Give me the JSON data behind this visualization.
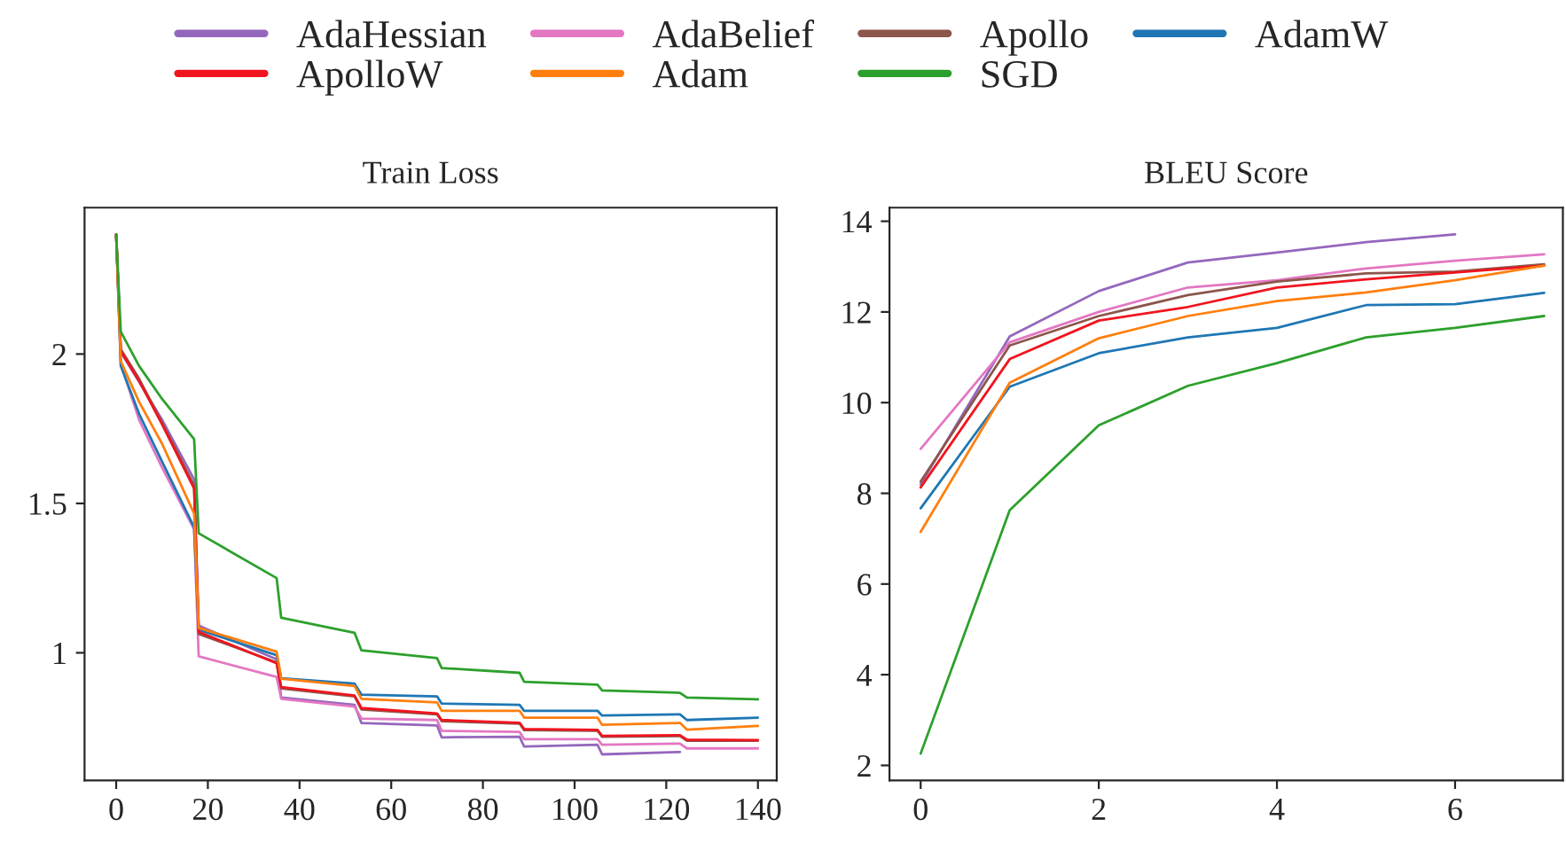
{
  "chart_data": [
    {
      "type": "line",
      "title": "Train Loss",
      "xlim": [
        -6.9,
        144.1
      ],
      "ylim": [
        0.573,
        2.49
      ],
      "xticks": [
        0,
        20,
        40,
        60,
        80,
        100,
        120,
        140
      ],
      "yticks": [
        1,
        1.5,
        2
      ],
      "grid": false,
      "legend": "top",
      "series": [
        {
          "name": "AdaHessian",
          "color": "#9467bd",
          "x": [
            0,
            1,
            5,
            10,
            17,
            18,
            35,
            36,
            52,
            53.5,
            70,
            71,
            88,
            89,
            105,
            106,
            123
          ],
          "values": [
            2.4,
            2.006,
            1.907,
            1.78,
            1.58,
            1.091,
            0.978,
            0.85,
            0.826,
            0.765,
            0.757,
            0.717,
            0.719,
            0.686,
            0.692,
            0.66,
            0.668
          ]
        },
        {
          "name": "AdaBelief",
          "color": "#e377c2",
          "x": [
            0,
            1,
            5,
            10,
            17,
            18,
            35,
            36,
            52,
            53.5,
            70,
            71,
            88,
            89,
            105,
            106,
            123,
            124.5,
            140
          ],
          "values": [
            2.4,
            1.966,
            1.78,
            1.62,
            1.413,
            0.988,
            0.919,
            0.846,
            0.82,
            0.78,
            0.775,
            0.739,
            0.735,
            0.711,
            0.711,
            0.692,
            0.696,
            0.68,
            0.68
          ]
        },
        {
          "name": "Apollo",
          "color": "#8c564b",
          "x": [
            0,
            1,
            5,
            10,
            17,
            18,
            35,
            36,
            52,
            53.5,
            70,
            71,
            88,
            89,
            105,
            106,
            123,
            124.5,
            140
          ],
          "values": [
            2.4,
            2.016,
            1.917,
            1.77,
            1.56,
            1.063,
            0.968,
            0.881,
            0.854,
            0.81,
            0.794,
            0.771,
            0.763,
            0.741,
            0.739,
            0.719,
            0.721,
            0.706,
            0.706
          ]
        },
        {
          "name": "AdamW",
          "color": "#1f77b4",
          "x": [
            0,
            1,
            5,
            10,
            17,
            18,
            35,
            36,
            52,
            53.5,
            70,
            71,
            88,
            89,
            105,
            106,
            123,
            124.5,
            140
          ],
          "values": [
            2.4,
            1.96,
            1.8,
            1.64,
            1.42,
            1.077,
            0.992,
            0.915,
            0.897,
            0.86,
            0.854,
            0.83,
            0.826,
            0.806,
            0.806,
            0.79,
            0.794,
            0.775,
            0.783
          ]
        },
        {
          "name": "ApolloW",
          "color": "#f0141e",
          "x": [
            0,
            1,
            5,
            10,
            17,
            18,
            35,
            36,
            52,
            53.5,
            70,
            71,
            88,
            89,
            105,
            106,
            123,
            124.5,
            140
          ],
          "values": [
            2.4,
            2.01,
            1.91,
            1.765,
            1.55,
            1.07,
            0.965,
            0.885,
            0.857,
            0.815,
            0.797,
            0.775,
            0.766,
            0.745,
            0.742,
            0.722,
            0.724,
            0.709,
            0.708
          ]
        },
        {
          "name": "Adam",
          "color": "#ff7f0e",
          "x": [
            0,
            1,
            5,
            10,
            17,
            18,
            35,
            36,
            52,
            53.5,
            70,
            71,
            88,
            89,
            105,
            106,
            123,
            124.5,
            140
          ],
          "values": [
            2.4,
            1.976,
            1.84,
            1.7,
            1.466,
            1.083,
            1.004,
            0.913,
            0.889,
            0.846,
            0.834,
            0.806,
            0.806,
            0.783,
            0.783,
            0.759,
            0.765,
            0.743,
            0.755
          ]
        },
        {
          "name": "SGD",
          "color": "#2ca02c",
          "x": [
            0,
            1,
            5,
            10,
            17,
            18,
            35,
            36,
            52,
            53.5,
            70,
            71,
            88,
            89,
            105,
            106,
            123,
            124.5,
            140
          ],
          "values": [
            2.4,
            2.075,
            1.96,
            1.85,
            1.715,
            1.4,
            1.25,
            1.117,
            1.067,
            1.008,
            0.982,
            0.949,
            0.933,
            0.903,
            0.893,
            0.874,
            0.866,
            0.85,
            0.844
          ]
        }
      ]
    },
    {
      "type": "line",
      "title": "BLEU Score",
      "xlim": [
        -0.35,
        7.21
      ],
      "ylim": [
        1.67,
        14.3
      ],
      "xticks": [
        0,
        2,
        4,
        6
      ],
      "yticks": [
        2,
        4,
        6,
        8,
        10,
        12,
        14
      ],
      "grid": false,
      "series": [
        {
          "color": "#9467bd",
          "x": [
            0,
            1,
            2,
            3,
            4,
            5,
            6
          ],
          "values": [
            8.2,
            11.46,
            12.46,
            13.09,
            13.31,
            13.54,
            13.71
          ]
        },
        {
          "color": "#e377c2",
          "x": [
            0,
            1,
            2,
            3,
            4,
            5,
            6,
            7
          ],
          "values": [
            8.98,
            11.33,
            12.0,
            12.54,
            12.7,
            12.96,
            13.13,
            13.27
          ]
        },
        {
          "color": "#8c564b",
          "x": [
            0,
            1,
            2,
            3,
            4,
            5,
            6,
            7
          ],
          "values": [
            8.26,
            11.26,
            11.91,
            12.37,
            12.67,
            12.85,
            12.89,
            13.05
          ]
        },
        {
          "color": "#1f77b4",
          "x": [
            0,
            1,
            2,
            3,
            4,
            5,
            6,
            7
          ],
          "values": [
            7.67,
            10.35,
            11.09,
            11.44,
            11.65,
            12.15,
            12.17,
            12.42
          ]
        },
        {
          "color": "#f0141e",
          "x": [
            0,
            1,
            2,
            3,
            4,
            5,
            6,
            7
          ],
          "values": [
            8.13,
            10.96,
            11.81,
            12.11,
            12.54,
            12.72,
            12.87,
            13.02
          ]
        },
        {
          "color": "#ff7f0e",
          "x": [
            0,
            1,
            2,
            3,
            4,
            5,
            6,
            7
          ],
          "values": [
            7.15,
            10.44,
            11.42,
            11.91,
            12.24,
            12.43,
            12.7,
            13.02
          ]
        },
        {
          "color": "#2ca02c",
          "x": [
            0,
            1,
            2,
            3,
            4,
            5,
            6,
            7
          ],
          "values": [
            2.26,
            7.63,
            9.5,
            10.37,
            10.87,
            11.44,
            11.65,
            11.91
          ]
        }
      ]
    }
  ]
}
